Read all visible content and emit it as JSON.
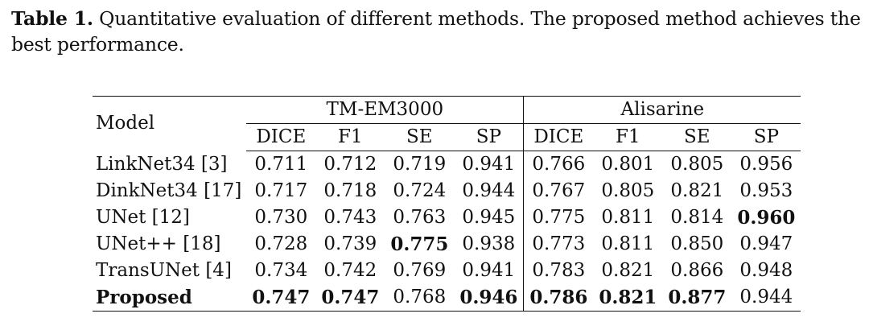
{
  "caption": {
    "label": "Table 1.",
    "text": " Quantitative evaluation of different methods. The proposed method achieves the best performance."
  },
  "table": {
    "model_header": "Model",
    "groups": [
      "TM-EM3000",
      "Alisarine"
    ],
    "metrics": [
      "DICE",
      "F1",
      "SE",
      "SP",
      "DICE",
      "F1",
      "SE",
      "SP"
    ],
    "rows": [
      {
        "model": "LinkNet34 [3]",
        "values": [
          "0.711",
          "0.712",
          "0.719",
          "0.941",
          "0.766",
          "0.801",
          "0.805",
          "0.956"
        ],
        "bold": [
          false,
          false,
          false,
          false,
          false,
          false,
          false,
          false
        ],
        "model_bold": false
      },
      {
        "model": "DinkNet34 [17]",
        "values": [
          "0.717",
          "0.718",
          "0.724",
          "0.944",
          "0.767",
          "0.805",
          "0.821",
          "0.953"
        ],
        "bold": [
          false,
          false,
          false,
          false,
          false,
          false,
          false,
          false
        ],
        "model_bold": false
      },
      {
        "model": "UNet [12]",
        "values": [
          "0.730",
          "0.743",
          "0.763",
          "0.945",
          "0.775",
          "0.811",
          "0.814",
          "0.960"
        ],
        "bold": [
          false,
          false,
          false,
          false,
          false,
          false,
          false,
          true
        ],
        "model_bold": false
      },
      {
        "model": "UNet++ [18]",
        "values": [
          "0.728",
          "0.739",
          "0.775",
          "0.938",
          "0.773",
          "0.811",
          "0.850",
          "0.947"
        ],
        "bold": [
          false,
          false,
          true,
          false,
          false,
          false,
          false,
          false
        ],
        "model_bold": false
      },
      {
        "model": "TransUNet [4]",
        "values": [
          "0.734",
          "0.742",
          "0.769",
          "0.941",
          "0.783",
          "0.821",
          "0.866",
          "0.948"
        ],
        "bold": [
          false,
          false,
          false,
          false,
          false,
          false,
          false,
          false
        ],
        "model_bold": false
      },
      {
        "model": "Proposed",
        "values": [
          "0.747",
          "0.747",
          "0.768",
          "0.946",
          "0.786",
          "0.821",
          "0.877",
          "0.944"
        ],
        "bold": [
          true,
          true,
          false,
          true,
          true,
          true,
          true,
          false
        ],
        "model_bold": true
      }
    ]
  }
}
